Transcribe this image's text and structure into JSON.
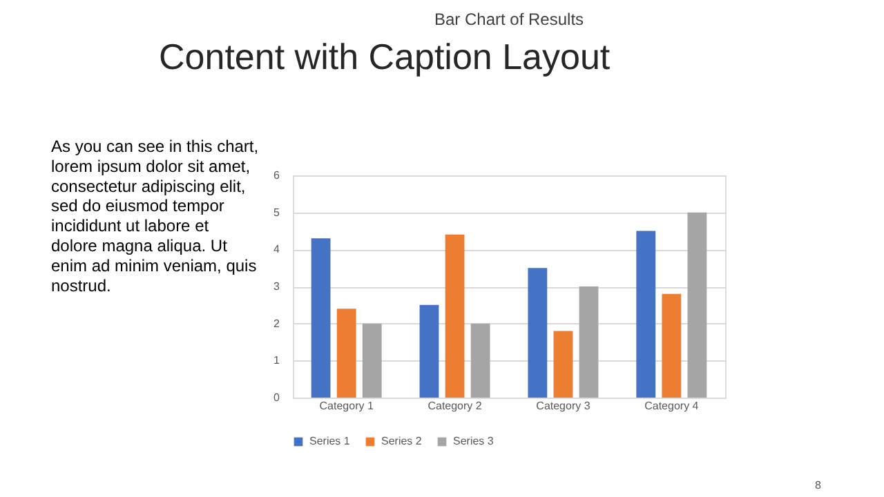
{
  "chart_data": {
    "type": "bar",
    "title": "Bar Chart of Results",
    "categories": [
      "Category 1",
      "Category 2",
      "Category 3",
      "Category 4"
    ],
    "series": [
      {
        "name": "Series 1",
        "color": "#4472c4",
        "values": [
          4.3,
          2.5,
          3.5,
          4.5
        ]
      },
      {
        "name": "Series 2",
        "color": "#ed7d31",
        "values": [
          2.4,
          4.4,
          1.8,
          2.8
        ]
      },
      {
        "name": "Series 3",
        "color": "#a5a5a5",
        "values": [
          2,
          2,
          3,
          5
        ]
      }
    ],
    "ylim": [
      0,
      6
    ],
    "yticks": [
      0,
      1,
      2,
      3,
      4,
      5,
      6
    ],
    "grid": "y",
    "legend": "bottom",
    "annotations": [
      "Content with Caption Layout",
      "As you can see in this chart,\nlorem ipsum dolor sit amet,\nconsectetur adipiscing elit,\nsed do eiusmod tempor\nincididunt ut labore et\ndolore magna aliqua. Ut\nenim ad minim veniam, quis\nnostrud.",
      "8"
    ]
  }
}
